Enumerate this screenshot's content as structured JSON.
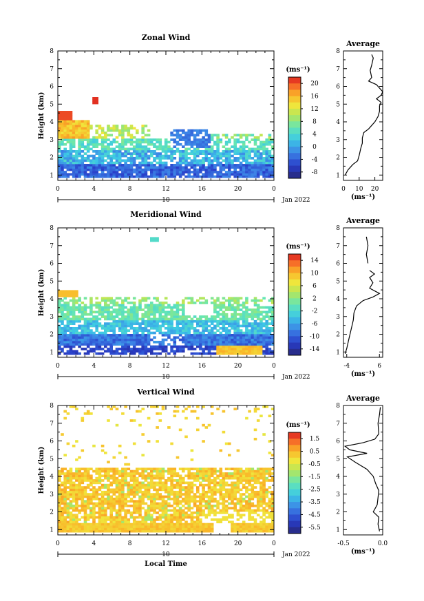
{
  "chart_data": [
    {
      "type": "heatmap",
      "title": "Zonal Wind",
      "ylabel": "Height (km)",
      "xlabel": "",
      "x_ticks": [
        "0",
        "4",
        "8",
        "12",
        "16",
        "20",
        "0"
      ],
      "y_ticks": [
        "1",
        "2",
        "3",
        "4",
        "5",
        "6",
        "7",
        "8"
      ],
      "date_axis": {
        "label": "10",
        "suffix": "Jan 2022"
      },
      "colorbar": {
        "unit": "(ms⁻¹)",
        "ticks": [
          "20",
          "16",
          "12",
          "8",
          "4",
          "0",
          "-4",
          "-8"
        ],
        "range": [
          -10,
          22
        ]
      },
      "xlim": [
        0,
        24
      ],
      "ylim": [
        0.7,
        8.0
      ],
      "profile": {
        "title": "Average",
        "xlabel": "(ms⁻¹)",
        "x_ticks": [
          "0",
          "10",
          "20"
        ],
        "xlim": [
          0,
          25
        ],
        "values": [
          [
            1.0,
            1
          ],
          [
            1.3,
            3
          ],
          [
            1.6,
            6
          ],
          [
            1.8,
            9
          ],
          [
            2.1,
            10
          ],
          [
            2.5,
            11
          ],
          [
            2.8,
            12
          ],
          [
            3.1,
            12
          ],
          [
            3.4,
            13
          ],
          [
            3.6,
            16
          ],
          [
            3.8,
            18
          ],
          [
            4.0,
            20
          ],
          [
            4.3,
            22
          ],
          [
            4.6,
            23
          ],
          [
            4.9,
            23
          ],
          [
            5.1,
            24
          ],
          [
            5.3,
            21
          ],
          [
            5.5,
            24
          ],
          [
            5.7,
            25
          ],
          [
            6.1,
            21
          ],
          [
            6.3,
            16
          ],
          [
            6.5,
            18
          ],
          [
            6.9,
            17
          ],
          [
            7.2,
            18
          ],
          [
            7.6,
            19
          ],
          [
            7.8,
            18
          ]
        ]
      }
    },
    {
      "type": "heatmap",
      "title": "Meridional Wind",
      "ylabel": "Height (km)",
      "xlabel": "",
      "x_ticks": [
        "0",
        "4",
        "8",
        "12",
        "16",
        "20",
        "0"
      ],
      "y_ticks": [
        "1",
        "2",
        "3",
        "4",
        "5",
        "6",
        "7",
        "8"
      ],
      "date_axis": {
        "label": "10",
        "suffix": "Jan 2022"
      },
      "colorbar": {
        "unit": "(ms⁻¹)",
        "ticks": [
          "14",
          "10",
          "6",
          "2",
          "-2",
          "-6",
          "-10",
          "-14"
        ],
        "range": [
          -16,
          16
        ]
      },
      "xlim": [
        0,
        24
      ],
      "ylim": [
        0.7,
        8.0
      ],
      "profile": {
        "title": "Average",
        "xlabel": "(ms⁻¹)",
        "x_ticks": [
          "-4",
          "6"
        ],
        "xlim": [
          -5,
          7
        ],
        "values": [
          [
            0.9,
            -4.5
          ],
          [
            1.2,
            -4
          ],
          [
            1.6,
            -3.5
          ],
          [
            2.0,
            -3
          ],
          [
            2.4,
            -2.5
          ],
          [
            2.8,
            -2
          ],
          [
            3.2,
            -1.8
          ],
          [
            3.6,
            -1
          ],
          [
            3.9,
            1
          ],
          [
            4.1,
            4
          ],
          [
            4.3,
            6
          ],
          [
            4.6,
            3
          ],
          [
            4.9,
            4
          ],
          [
            5.2,
            3
          ],
          [
            5.4,
            4.5
          ],
          [
            5.6,
            3
          ]
        ],
        "upper": [
          [
            6.0,
            2.5
          ],
          [
            6.5,
            2
          ],
          [
            7.0,
            2.5
          ],
          [
            7.5,
            2
          ]
        ]
      }
    },
    {
      "type": "heatmap",
      "title": "Vertical Wind",
      "ylabel": "Height (km)",
      "xlabel": "Local Time",
      "x_ticks": [
        "0",
        "4",
        "8",
        "12",
        "16",
        "20",
        "0"
      ],
      "y_ticks": [
        "1",
        "2",
        "3",
        "4",
        "5",
        "6",
        "7",
        "8"
      ],
      "date_axis": {
        "label": "10",
        "suffix": "Jan 2022"
      },
      "colorbar": {
        "unit": "(ms⁻¹)",
        "ticks": [
          "1.5",
          "0.5",
          "-0.5",
          "-1.5",
          "-2.5",
          "-3.5",
          "-4.5",
          "-5.5"
        ],
        "range": [
          -6,
          2
        ]
      },
      "xlim": [
        0,
        24
      ],
      "ylim": [
        0.7,
        8.0
      ],
      "profile": {
        "title": "Average",
        "xlabel": "(ms⁻¹)",
        "x_ticks": [
          "-0.5",
          "0.0"
        ],
        "xlim": [
          -0.5,
          0.0
        ],
        "values": [
          [
            0.9,
            -0.04
          ],
          [
            1.3,
            -0.06
          ],
          [
            1.7,
            -0.05
          ],
          [
            2.0,
            -0.12
          ],
          [
            2.4,
            -0.07
          ],
          [
            2.8,
            -0.06
          ],
          [
            3.2,
            -0.05
          ],
          [
            3.6,
            -0.09
          ],
          [
            4.0,
            -0.12
          ],
          [
            4.4,
            -0.2
          ],
          [
            4.8,
            -0.35
          ],
          [
            5.1,
            -0.45
          ],
          [
            5.3,
            -0.2
          ],
          [
            5.5,
            -0.42
          ],
          [
            5.7,
            -0.48
          ],
          [
            5.9,
            -0.25
          ],
          [
            6.1,
            -0.1
          ],
          [
            6.4,
            -0.05
          ],
          [
            7.0,
            -0.06
          ],
          [
            7.5,
            -0.04
          ],
          [
            7.9,
            -0.03
          ]
        ]
      }
    }
  ]
}
